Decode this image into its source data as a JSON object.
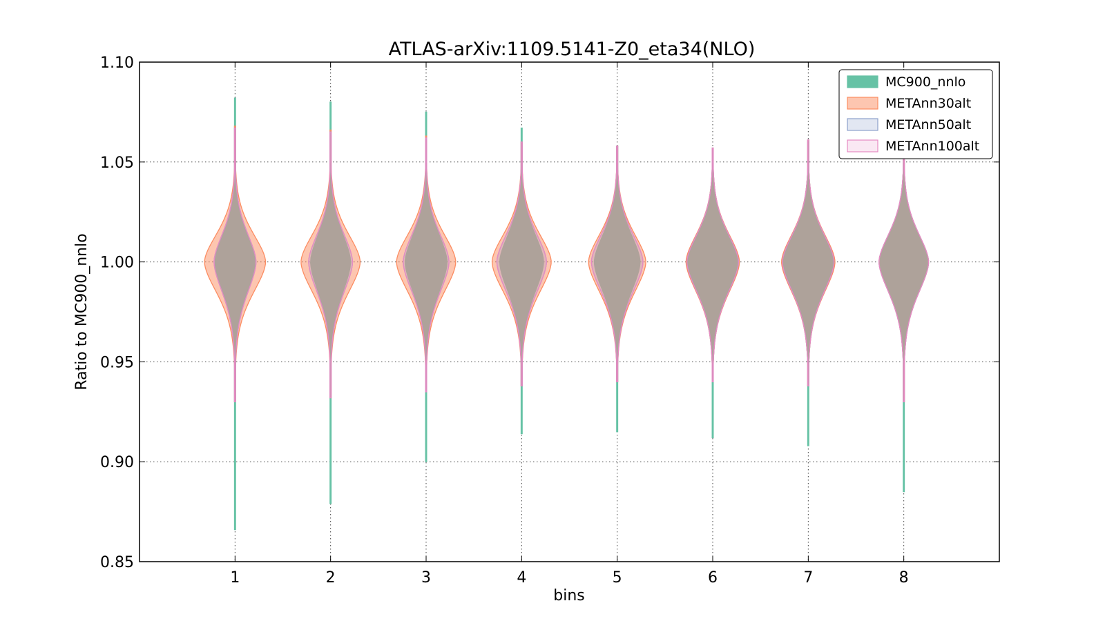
{
  "chart_data": {
    "type": "violin",
    "title": "ATLAS-arXiv:1109.5141-Z0_eta34(NLO)",
    "xlabel": "bins",
    "ylabel": "Ratio to MC900_nnlo",
    "ylim": [
      0.85,
      1.1
    ],
    "xlim": [
      0,
      9
    ],
    "yticks": [
      "0.85",
      "0.90",
      "0.95",
      "1.00",
      "1.05",
      "1.10"
    ],
    "ytick_values": [
      0.85,
      0.9,
      0.95,
      1.0,
      1.05,
      1.1
    ],
    "categories": [
      "1",
      "2",
      "3",
      "4",
      "5",
      "6",
      "7",
      "8"
    ],
    "grid": true,
    "legend_position": "top-right",
    "series": [
      {
        "name": "MC900_nnlo",
        "fill": "#66c2a5",
        "stroke": "#66c2a5",
        "opacity": 1.0,
        "violins": [
          {
            "min": 0.866,
            "max": 1.082,
            "center": 1.0,
            "half_width": 0.21
          },
          {
            "min": 0.879,
            "max": 1.08,
            "center": 1.0,
            "half_width": 0.21
          },
          {
            "min": 0.9,
            "max": 1.075,
            "center": 1.0,
            "half_width": 0.22
          },
          {
            "min": 0.914,
            "max": 1.067,
            "center": 1.0,
            "half_width": 0.23
          },
          {
            "min": 0.915,
            "max": 1.058,
            "center": 1.0,
            "half_width": 0.24
          },
          {
            "min": 0.912,
            "max": 1.056,
            "center": 1.0,
            "half_width": 0.27
          },
          {
            "min": 0.908,
            "max": 1.06,
            "center": 1.0,
            "half_width": 0.27
          },
          {
            "min": 0.885,
            "max": 1.068,
            "center": 1.0,
            "half_width": 0.25
          }
        ]
      },
      {
        "name": "METAnn30alt",
        "fill": "#fc8d62",
        "stroke": "#fc8d62",
        "opacity": 0.5,
        "violins": [
          {
            "min": 0.93,
            "max": 1.068,
            "center": 1.0,
            "half_width": 0.32
          },
          {
            "min": 0.932,
            "max": 1.066,
            "center": 1.0,
            "half_width": 0.31
          },
          {
            "min": 0.935,
            "max": 1.063,
            "center": 1.0,
            "half_width": 0.31
          },
          {
            "min": 0.938,
            "max": 1.06,
            "center": 1.0,
            "half_width": 0.31
          },
          {
            "min": 0.94,
            "max": 1.058,
            "center": 1.0,
            "half_width": 0.3
          },
          {
            "min": 0.94,
            "max": 1.057,
            "center": 1.0,
            "half_width": 0.28
          },
          {
            "min": 0.938,
            "max": 1.061,
            "center": 1.0,
            "half_width": 0.28
          },
          {
            "min": 0.93,
            "max": 1.068,
            "center": 1.0,
            "half_width": 0.26
          }
        ]
      },
      {
        "name": "METAnn50alt",
        "fill": "#8da0cb",
        "stroke": "#8da0cb",
        "opacity": 0.25,
        "violins": [
          {
            "min": 0.93,
            "max": 1.067,
            "center": 1.0,
            "half_width": 0.22
          },
          {
            "min": 0.932,
            "max": 1.065,
            "center": 1.0,
            "half_width": 0.23
          },
          {
            "min": 0.935,
            "max": 1.062,
            "center": 1.0,
            "half_width": 0.24
          },
          {
            "min": 0.938,
            "max": 1.06,
            "center": 1.0,
            "half_width": 0.26
          },
          {
            "min": 0.94,
            "max": 1.058,
            "center": 1.0,
            "half_width": 0.27
          },
          {
            "min": 0.94,
            "max": 1.057,
            "center": 1.0,
            "half_width": 0.27
          },
          {
            "min": 0.938,
            "max": 1.061,
            "center": 1.0,
            "half_width": 0.27
          },
          {
            "min": 0.93,
            "max": 1.068,
            "center": 1.0,
            "half_width": 0.26
          }
        ]
      },
      {
        "name": "METAnn100alt",
        "fill": "#e78ac3",
        "stroke": "#e78ac3",
        "opacity": 0.12,
        "violins": [
          {
            "min": 0.93,
            "max": 1.067,
            "center": 1.0,
            "half_width": 0.22
          },
          {
            "min": 0.932,
            "max": 1.065,
            "center": 1.0,
            "half_width": 0.23
          },
          {
            "min": 0.935,
            "max": 1.062,
            "center": 1.0,
            "half_width": 0.24
          },
          {
            "min": 0.938,
            "max": 1.06,
            "center": 1.0,
            "half_width": 0.26
          },
          {
            "min": 0.94,
            "max": 1.058,
            "center": 1.0,
            "half_width": 0.27
          },
          {
            "min": 0.94,
            "max": 1.057,
            "center": 1.0,
            "half_width": 0.27
          },
          {
            "min": 0.938,
            "max": 1.061,
            "center": 1.0,
            "half_width": 0.27
          },
          {
            "min": 0.93,
            "max": 1.068,
            "center": 1.0,
            "half_width": 0.26
          }
        ]
      }
    ]
  }
}
